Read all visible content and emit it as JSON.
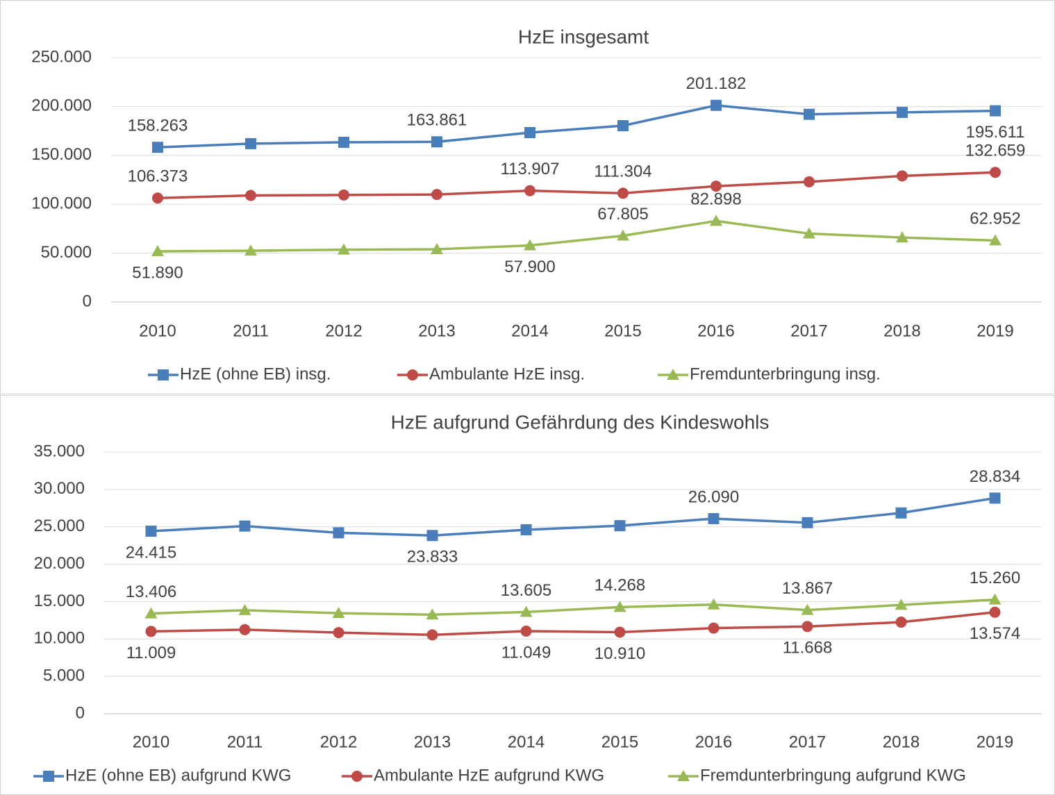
{
  "chart_data": [
    {
      "type": "line",
      "title": "HzE insgesamt",
      "categories": [
        "2010",
        "2011",
        "2012",
        "2013",
        "2014",
        "2015",
        "2016",
        "2017",
        "2018",
        "2019"
      ],
      "ylim": [
        0,
        250000
      ],
      "yticks": [
        0,
        {
          "value": 50000,
          "label": "50.000"
        },
        {
          "value": 100000,
          "label": "100.000"
        },
        {
          "value": 150000,
          "label": "150.000"
        },
        {
          "value": 200000,
          "label": "200.000"
        },
        {
          "value": 250000,
          "label": "250.000"
        }
      ],
      "grid": true,
      "legend": "bottom",
      "series": [
        {
          "name": "HzE (ohne EB) insg.",
          "color": "#4a7ebb",
          "marker": "square",
          "values": [
            158263,
            162000,
            163400,
            163861,
            173300,
            180400,
            201182,
            192000,
            194000,
            195611
          ],
          "value_labels": [
            "158.263",
            null,
            null,
            "163.861",
            null,
            null,
            "201.182",
            null,
            null,
            "195.611"
          ]
        },
        {
          "name": "Ambulante HzE insg.",
          "color": "#be4b48",
          "marker": "circle",
          "values": [
            106373,
            109000,
            109500,
            110000,
            113907,
            111304,
            118500,
            123000,
            129000,
            132659
          ],
          "value_labels": [
            "106.373",
            null,
            null,
            null,
            "113.907",
            "111.304",
            null,
            null,
            null,
            "132.659"
          ]
        },
        {
          "name": "Fremdunterbringung insg.",
          "color": "#98b954",
          "marker": "triangle",
          "values": [
            51890,
            52500,
            53500,
            54000,
            57900,
            67805,
            82898,
            70000,
            66000,
            62952
          ],
          "value_labels": [
            "51.890",
            null,
            null,
            null,
            "57.900",
            "67.805",
            "82.898",
            null,
            null,
            "62.952"
          ]
        }
      ]
    },
    {
      "type": "line",
      "title": "HzE aufgrund Gefährdung des Kindeswohls",
      "categories": [
        "2010",
        "2011",
        "2012",
        "2013",
        "2014",
        "2015",
        "2016",
        "2017",
        "2018",
        "2019"
      ],
      "ylim": [
        0,
        35000
      ],
      "yticks": [
        0,
        {
          "value": 5000,
          "label": "5.000"
        },
        {
          "value": 10000,
          "label": "10.000"
        },
        {
          "value": 15000,
          "label": "15.000"
        },
        {
          "value": 20000,
          "label": "20.000"
        },
        {
          "value": 25000,
          "label": "25.000"
        },
        {
          "value": 30000,
          "label": "30.000"
        },
        {
          "value": 35000,
          "label": "35.000"
        }
      ],
      "grid": true,
      "legend": "bottom",
      "series": [
        {
          "name": "HzE (ohne EB) aufgrund KWG",
          "color": "#4a7ebb",
          "marker": "square",
          "values": [
            24415,
            25100,
            24200,
            23833,
            24600,
            25150,
            26090,
            25550,
            26850,
            28834
          ],
          "value_labels": [
            "24.415",
            null,
            null,
            "23.833",
            null,
            null,
            "26.090",
            null,
            null,
            "28.834"
          ]
        },
        {
          "name": "Ambulante HzE aufgrund KWG",
          "color": "#be4b48",
          "marker": "circle",
          "values": [
            11009,
            11250,
            10850,
            10550,
            11049,
            10910,
            11450,
            11668,
            12250,
            13574
          ],
          "value_labels": [
            "11.009",
            null,
            null,
            null,
            "11.049",
            "10.910",
            null,
            "11.668",
            null,
            "13.574"
          ]
        },
        {
          "name": "Fremdunterbringung aufgrund KWG",
          "color": "#98b954",
          "marker": "triangle",
          "values": [
            13406,
            13850,
            13450,
            13250,
            13605,
            14268,
            14600,
            13867,
            14550,
            15260
          ],
          "value_labels": [
            "13.406",
            null,
            null,
            null,
            "13.605",
            "14.268",
            null,
            "13.867",
            null,
            "15.260"
          ]
        }
      ]
    }
  ]
}
